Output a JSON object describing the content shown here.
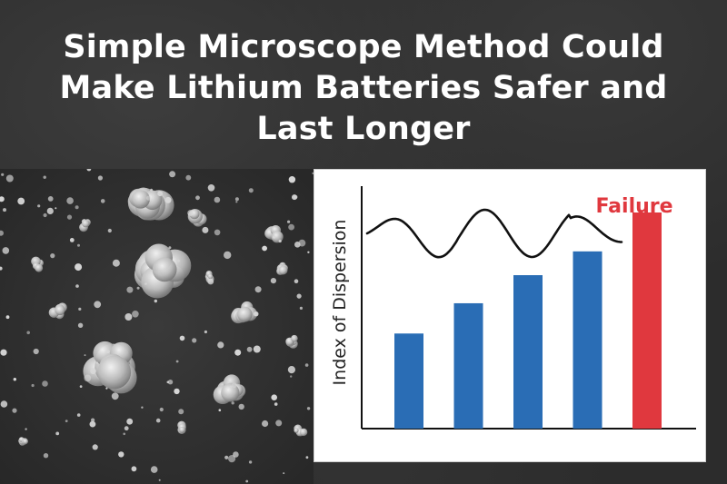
{
  "title": {
    "line1": "Simple Microscope Method Could",
    "line2": "Make Lithium Batteries Safer and",
    "line3": "Last Longer"
  },
  "micrograph": {
    "description_icon": "sem-particle-image"
  },
  "colors": {
    "bar_normal": "#2a6db5",
    "bar_failure": "#e0383e",
    "axis": "#111111",
    "wave": "#111111"
  },
  "chart_data": {
    "type": "bar",
    "ylabel": "Index of Dispersion",
    "xlabel": "",
    "annotation": "Failure",
    "categories": [
      "",
      "",
      "",
      "",
      ""
    ],
    "values": [
      0.44,
      0.58,
      0.71,
      0.82,
      1.0
    ],
    "highlight_index": 4,
    "ylim": [
      0,
      1.1
    ],
    "grid": false,
    "has_wave_overlay": true
  }
}
